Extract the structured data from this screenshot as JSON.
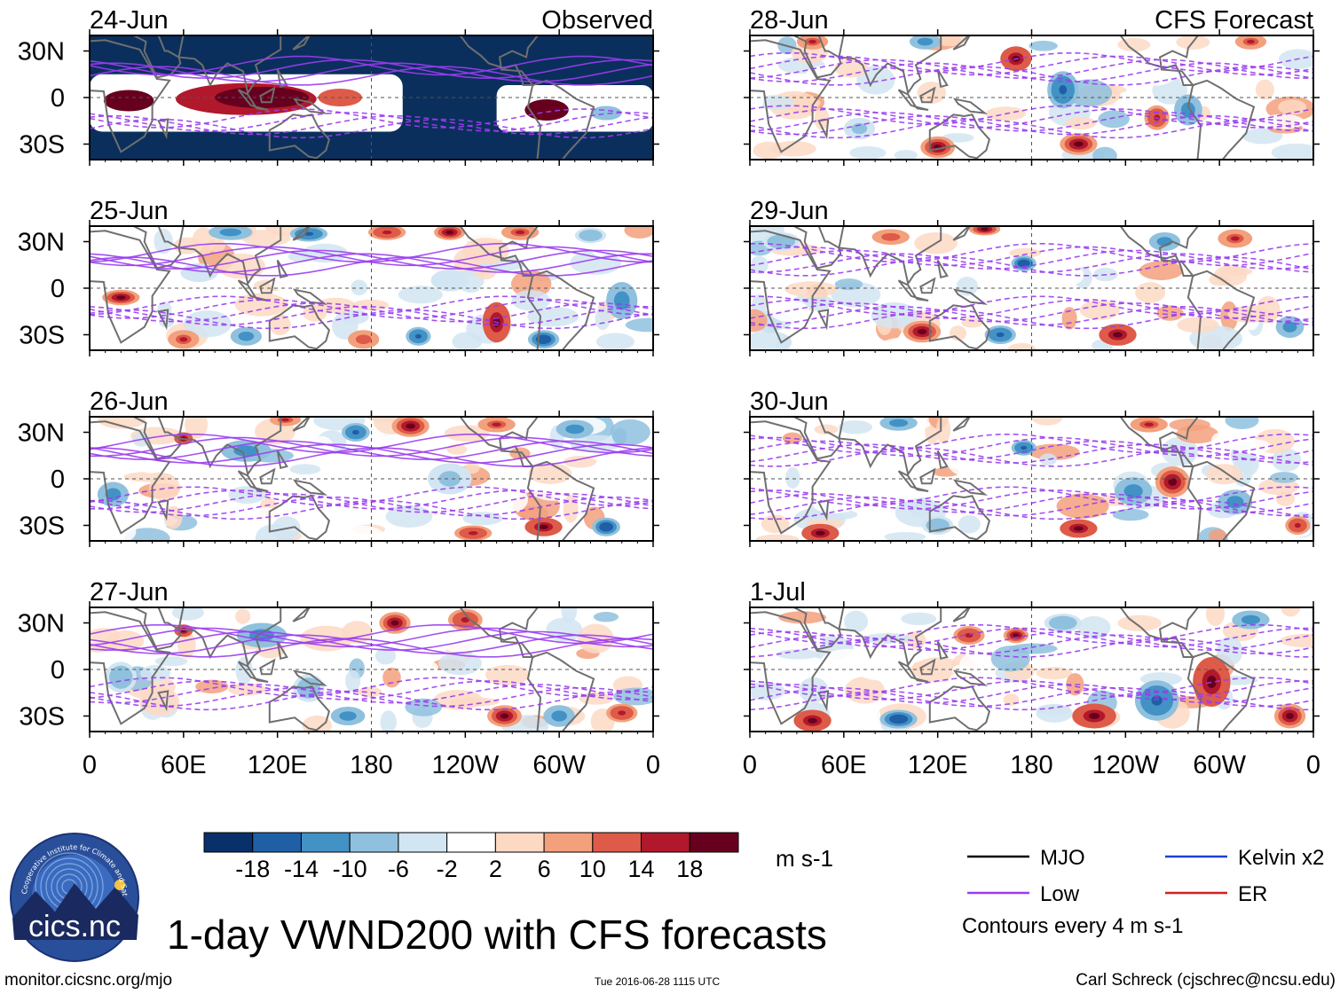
{
  "chart_data": {
    "type": "heatmap",
    "title": "1-day VWND200 with CFS forecasts",
    "variable": "VWND200",
    "units": "m s-1",
    "colorbar": {
      "bounds": [
        -22,
        -18,
        -14,
        -10,
        -6,
        -2,
        2,
        6,
        10,
        14,
        18,
        22
      ],
      "tick_labels": [
        "-18",
        "-14",
        "-10",
        "-6",
        "-2",
        "2",
        "6",
        "10",
        "14",
        "18"
      ],
      "colors": [
        "#08306b",
        "#1f5fa6",
        "#4292c6",
        "#8fc1de",
        "#d2e5f2",
        "#ffffff",
        "#fdd9c4",
        "#f3a07c",
        "#dd5b48",
        "#b2182b",
        "#67001f"
      ]
    },
    "x_axis": {
      "tick_labels": [
        "0",
        "60E",
        "120E",
        "180",
        "120W",
        "60W",
        "0"
      ],
      "lon_range": [
        0,
        360
      ]
    },
    "y_axis": {
      "tick_labels": [
        "30N",
        "0",
        "30S"
      ],
      "lat_range": [
        -40,
        40
      ]
    },
    "observed_header": "Observed",
    "forecast_header": "CFS Forecast",
    "observed_panels": [
      {
        "date": "24-Jun"
      },
      {
        "date": "25-Jun"
      },
      {
        "date": "26-Jun"
      },
      {
        "date": "27-Jun"
      }
    ],
    "forecast_panels": [
      {
        "date": "28-Jun"
      },
      {
        "date": "29-Jun"
      },
      {
        "date": "30-Jun"
      },
      {
        "date": "1-Jul"
      }
    ],
    "legend": [
      {
        "label": "MJO",
        "color": "#000000"
      },
      {
        "label": "Kelvin x2",
        "color": "#1f3fd6"
      },
      {
        "label": "Low",
        "color": "#9a3df0"
      },
      {
        "label": "ER",
        "color": "#d41f1f"
      }
    ],
    "contour_note": "Contours every 4 m s-1",
    "logo_text": "cics.nc",
    "logo_ring_text": "Cooperative Institute for Climate and Satellites",
    "footer_url": "monitor.cicsnc.org/mjo",
    "footer_timestamp": "Tue 2016-06-28 1115 UTC",
    "footer_author": "Carl Schreck (cjschrec@ncsu.edu)",
    "colors": {
      "mask": "#0a2f5c",
      "land": "#6f6f6f",
      "contour": "#9a3df0"
    }
  }
}
